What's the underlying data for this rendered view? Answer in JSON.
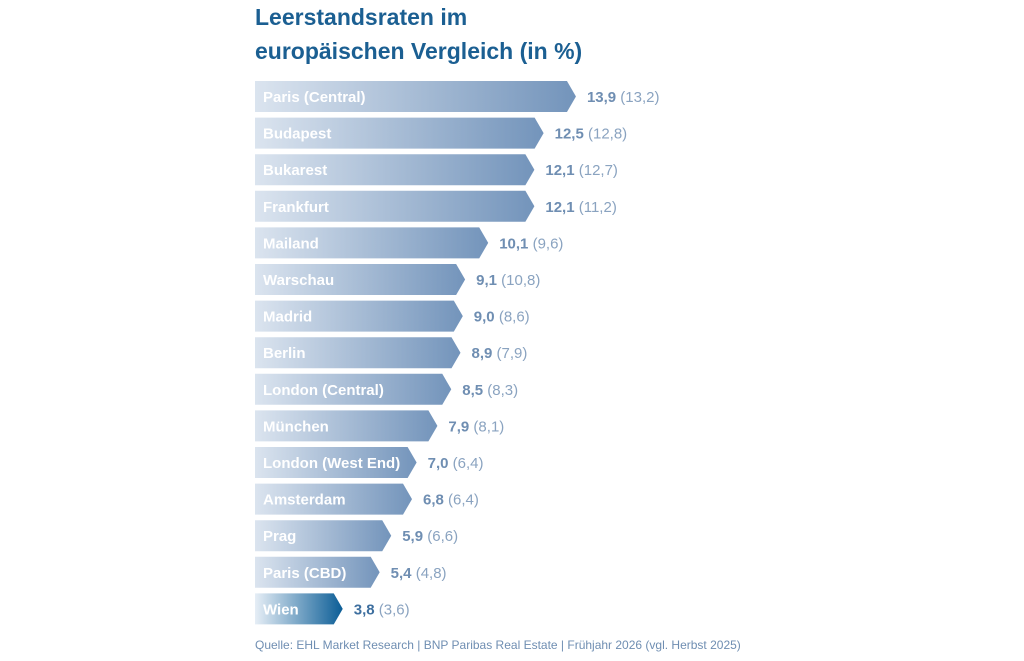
{
  "title_line1": "Leerstandsraten im",
  "title_line2": "europäischen Vergleich (in %)",
  "source": "Quelle: EHL Market Research | BNP Paribas Real Estate | Frühjahr 2026 (vgl. Herbst 2025)",
  "colors": {
    "title": "#1b5f92",
    "bar_light": "#dbe4ef",
    "bar_dark": "#7394bb",
    "highlight_light": "#e6eef6",
    "highlight_dark": "#0b5d96",
    "value_text": "#6f8eb2"
  },
  "chart_data": {
    "type": "bar",
    "orientation": "horizontal",
    "title": "Leerstandsraten im europäischen Vergleich (in %)",
    "categories": [
      "Paris (Central)",
      "Budapest",
      "Bukarest",
      "Frankfurt",
      "Mailand",
      "Warschau",
      "Madrid",
      "Berlin",
      "London (Central)",
      "München",
      "London (West End)",
      "Amsterdam",
      "Prag",
      "Paris (CBD)",
      "Wien"
    ],
    "values": [
      13.9,
      12.5,
      12.1,
      12.1,
      10.1,
      9.1,
      9.0,
      8.9,
      8.5,
      7.9,
      7.0,
      6.8,
      5.9,
      5.4,
      3.8
    ],
    "value_labels": [
      "13,9",
      "12,5",
      "12,1",
      "12,1",
      "10,1",
      "9,1",
      "9,0",
      "8,9",
      "8,5",
      "7,9",
      "7,0",
      "6,8",
      "5,9",
      "5,4",
      "3,8"
    ],
    "previous_labels": [
      "(13,2)",
      "(12,8)",
      "(12,7)",
      "(11,2)",
      "(9,6)",
      "(10,8)",
      "(8,6)",
      "(7,9)",
      "(8,3)",
      "(8,1)",
      "(6,4)",
      "(6,4)",
      "(6,6)",
      "(4,8)",
      "(3,6)"
    ],
    "previous_values": [
      13.2,
      12.8,
      12.7,
      11.2,
      9.6,
      10.8,
      8.6,
      7.9,
      8.3,
      8.1,
      6.4,
      6.4,
      6.6,
      4.8,
      3.6
    ],
    "highlight": "Wien",
    "grid": false,
    "legend": "none"
  }
}
